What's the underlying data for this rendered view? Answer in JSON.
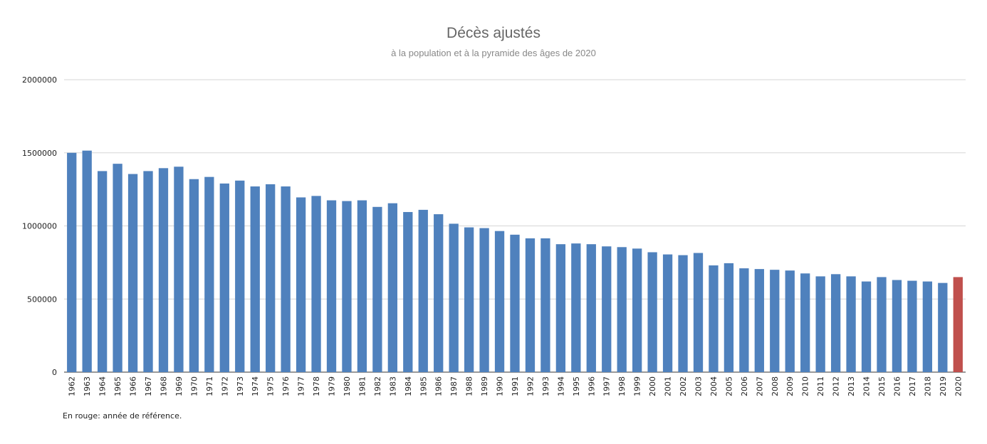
{
  "chart_data": {
    "type": "bar",
    "title": "Décès ajustés",
    "subtitle": "à la population et à la pyramide des âges de 2020",
    "xlabel": "",
    "ylabel": "",
    "ylim": [
      0,
      2000000
    ],
    "yticks": [
      {
        "value": 0,
        "label": "0"
      },
      {
        "value": 500000,
        "label": "500000"
      },
      {
        "value": 1000000,
        "label": "1000000"
      },
      {
        "value": 1500000,
        "label": "1500000"
      },
      {
        "value": 2000000,
        "label": "2000000"
      }
    ],
    "grid": true,
    "legend": "none",
    "colors": {
      "default": "#4f81bd",
      "highlight": "#c0504d"
    },
    "highlight_category": "2020",
    "categories": [
      "1962",
      "1963",
      "1964",
      "1965",
      "1966",
      "1967",
      "1968",
      "1969",
      "1970",
      "1971",
      "1972",
      "1973",
      "1974",
      "1975",
      "1976",
      "1977",
      "1978",
      "1979",
      "1980",
      "1981",
      "1982",
      "1983",
      "1984",
      "1985",
      "1986",
      "1987",
      "1988",
      "1989",
      "1990",
      "1991",
      "1992",
      "1993",
      "1994",
      "1995",
      "1996",
      "1997",
      "1998",
      "1999",
      "2000",
      "2001",
      "2002",
      "2003",
      "2004",
      "2005",
      "2006",
      "2007",
      "2008",
      "2009",
      "2010",
      "2011",
      "2012",
      "2013",
      "2014",
      "2015",
      "2016",
      "2017",
      "2018",
      "2019",
      "2020"
    ],
    "values": [
      1500000,
      1515000,
      1375000,
      1425000,
      1355000,
      1375000,
      1395000,
      1405000,
      1320000,
      1335000,
      1290000,
      1310000,
      1270000,
      1285000,
      1270000,
      1195000,
      1205000,
      1175000,
      1170000,
      1175000,
      1130000,
      1155000,
      1095000,
      1110000,
      1080000,
      1015000,
      990000,
      985000,
      965000,
      940000,
      915000,
      915000,
      875000,
      880000,
      875000,
      860000,
      855000,
      845000,
      820000,
      805000,
      800000,
      815000,
      730000,
      745000,
      710000,
      705000,
      700000,
      695000,
      675000,
      655000,
      670000,
      655000,
      620000,
      650000,
      630000,
      625000,
      620000,
      610000,
      650000
    ]
  },
  "note": "En rouge: année de référence."
}
